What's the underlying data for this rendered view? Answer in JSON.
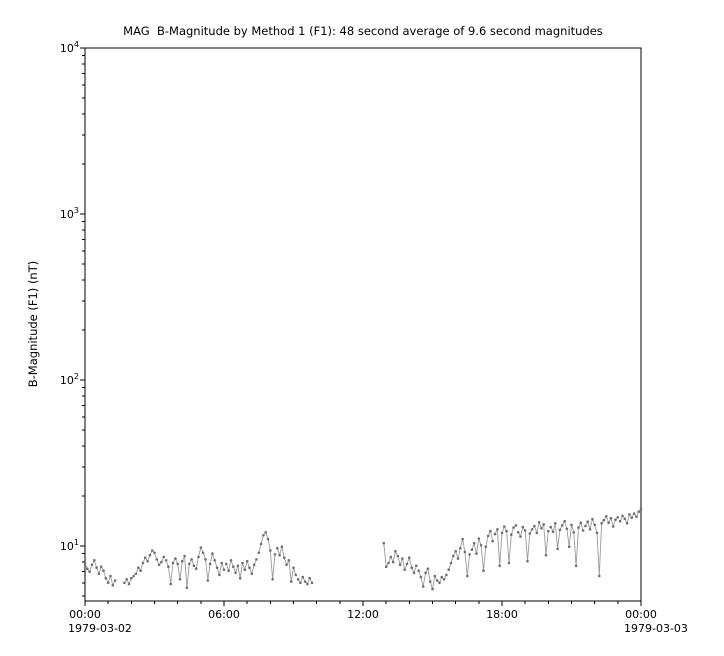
{
  "chart_data": {
    "type": "line",
    "title": "MAG  B-Magnitude by Method 1 (F1): 48 second average of 9.6 second magnitudes",
    "ylabel": "B-Magnitude (F1) (nT)",
    "yscale": "log",
    "ylim": [
      4.7,
      10000
    ],
    "y_tick_exponents": [
      1,
      2,
      3,
      4
    ],
    "x_unit": "hours since 1979-03-02 00:00",
    "xlim_hours": [
      0,
      24
    ],
    "x_ticks_hours": [
      0,
      6,
      12,
      18,
      24
    ],
    "x_tick_labels": [
      "00:00",
      "06:00",
      "12:00",
      "18:00",
      "00:00"
    ],
    "x_start_date": "1979-03-02",
    "x_end_date": "1979-03-03",
    "grid": false,
    "legend": false,
    "line_color": "#9b9b9b",
    "marker_color": "#6f6f6f",
    "segments": [
      {
        "t0": 0.0,
        "dt": 0.1,
        "values": [
          7.9,
          7.3,
          7.0,
          7.7,
          8.2,
          7.4,
          6.8,
          7.5,
          7.1,
          6.4,
          6.0,
          6.6,
          5.8,
          6.2
        ]
      },
      {
        "t0": 1.7,
        "dt": 0.1,
        "values": [
          6.0,
          6.3,
          5.9,
          6.4,
          6.6
        ]
      },
      {
        "t0": 2.2,
        "dt": 0.1,
        "values": [
          6.8,
          7.4,
          7.1,
          7.9,
          8.5,
          8.1,
          8.8,
          9.4,
          9.1,
          8.3,
          7.7,
          8.0,
          8.6
        ]
      },
      {
        "t0": 3.5,
        "dt": 0.1,
        "values": [
          8.2,
          7.5,
          5.9,
          7.9,
          8.4,
          7.8,
          6.3,
          8.1,
          8.7,
          5.6,
          7.8,
          8.3,
          7.6
        ]
      },
      {
        "t0": 4.8,
        "dt": 0.1,
        "values": [
          7.3,
          8.6,
          9.8,
          9.1,
          8.3,
          6.2,
          7.8,
          9.0,
          8.2,
          7.4,
          6.7,
          7.9,
          7.2
        ]
      },
      {
        "t0": 6.1,
        "dt": 0.1,
        "values": [
          7.8,
          7.1,
          8.2,
          7.5,
          6.9,
          7.6,
          6.4,
          7.9,
          7.2,
          8.1,
          7.4,
          6.8,
          7.7,
          8.3
        ]
      },
      {
        "t0": 7.5,
        "dt": 0.1,
        "values": [
          9.1,
          10.3,
          11.6,
          12.1,
          11.0,
          9.4,
          6.3,
          8.9
        ]
      },
      {
        "t0": 8.3,
        "dt": 0.1,
        "values": [
          9.7,
          8.8,
          9.9,
          8.5,
          7.7,
          8.2,
          6.1,
          7.4,
          6.7
        ]
      },
      {
        "t0": 9.2,
        "dt": 0.1,
        "values": [
          6.3,
          6.0,
          6.5,
          6.1,
          5.9,
          6.4,
          6.0
        ]
      },
      {
        "t0": 12.9,
        "dt": 0.1,
        "values": [
          10.4,
          7.5,
          7.9,
          8.6,
          8.0,
          9.3,
          8.7,
          7.7,
          8.4,
          7.2,
          7.8,
          8.5,
          7.4,
          6.9,
          7.6
        ]
      },
      {
        "t0": 14.4,
        "dt": 0.1,
        "values": [
          7.1,
          6.5,
          5.7,
          6.9,
          7.3,
          6.1,
          5.5,
          6.6,
          6.2,
          6.0,
          6.5,
          6.3,
          6.7
        ]
      },
      {
        "t0": 15.7,
        "dt": 0.1,
        "values": [
          7.2,
          7.9,
          8.7,
          9.3,
          8.4,
          9.7,
          11.0,
          9.2,
          6.6,
          8.9
        ]
      },
      {
        "t0": 16.7,
        "dt": 0.1,
        "values": [
          9.5,
          10.4,
          9.0,
          11.1,
          10.1,
          7.1,
          9.9,
          11.5,
          12.3,
          10.7
        ]
      },
      {
        "t0": 17.7,
        "dt": 0.1,
        "values": [
          11.8,
          12.6,
          7.6,
          12.0,
          13.1,
          12.3,
          7.9,
          11.7,
          12.9,
          13.3
        ]
      },
      {
        "t0": 18.7,
        "dt": 0.1,
        "values": [
          12.1,
          11.4,
          13.0,
          12.4,
          8.1,
          11.9,
          12.6,
          13.2,
          12.0,
          13.9,
          12.8,
          13.5,
          8.8,
          12.3
        ]
      },
      {
        "t0": 20.1,
        "dt": 0.1,
        "values": [
          13.0,
          12.2,
          13.7,
          9.6,
          12.5,
          13.3,
          14.1,
          12.7,
          9.9,
          13.4,
          12.1,
          7.6,
          12.9,
          13.8,
          12.4
        ]
      },
      {
        "t0": 21.6,
        "dt": 0.1,
        "values": [
          13.2,
          14.0,
          12.6,
          14.5,
          13.4,
          12.0,
          6.6,
          13.7,
          14.3,
          15.1,
          13.8,
          14.7,
          13.1,
          14.4,
          14.9
        ]
      },
      {
        "t0": 23.1,
        "dt": 0.1,
        "values": [
          14.1,
          15.2,
          14.6,
          13.7,
          15.5,
          14.8,
          15.7,
          15.0,
          16.1,
          16.8
        ]
      }
    ]
  }
}
